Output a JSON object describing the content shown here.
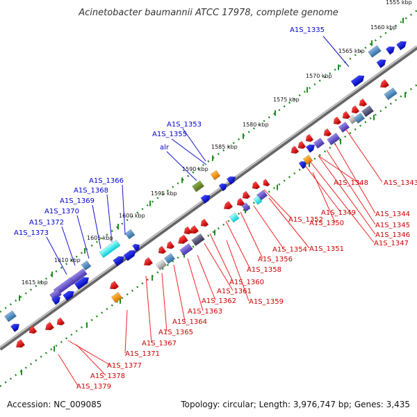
{
  "title": "Acinetobacter baumannii ATCC 17978, complete genome",
  "footer": {
    "accession": "Accession: NC_009085",
    "topology": "Topology: circular; Length: 3,976,747 bp; Genes: 3,435"
  },
  "colors": {
    "forward": "#0a14e6",
    "reverse": "#ee1111",
    "backbone": "#777777",
    "ruler": "#228822",
    "label_forward": "#0000cc",
    "label_reverse": "#cc0000"
  },
  "ruler_ticks": [
    "1555 kbp",
    "1560 kbp",
    "1565 kbp",
    "1570 kbp",
    "1575 kbp",
    "1580 kbp",
    "1585 kbp",
    "1590 kbp",
    "1595 kbp",
    "1600 kbp",
    "1605 kbp",
    "1610 kbp",
    "1615 kbp"
  ],
  "labels_forward": [
    "A1S_1335",
    "A1S_1353",
    "A1S_1355",
    "alr",
    "A1S_1366",
    "A1S_1368",
    "A1S_1369",
    "A1S_1370",
    "A1S_1372",
    "A1S_1373"
  ],
  "labels_reverse": [
    "A1S_1343",
    "A1S_1344",
    "A1S_1345",
    "A1S_1346",
    "A1S_1347",
    "A1S_1348",
    "A1S_1349",
    "A1S_1350",
    "A1S_1352",
    "A1S_1351",
    "A1S_1354",
    "A1S_1356",
    "A1S_1358",
    "A1S_1360",
    "A1S_1361",
    "A1S_1359",
    "A1S_1362",
    "A1S_1363",
    "A1S_1364",
    "A1S_1365",
    "A1S_1367",
    "A1S_1371",
    "A1S_1377",
    "A1S_1378",
    "A1S_1379"
  ]
}
